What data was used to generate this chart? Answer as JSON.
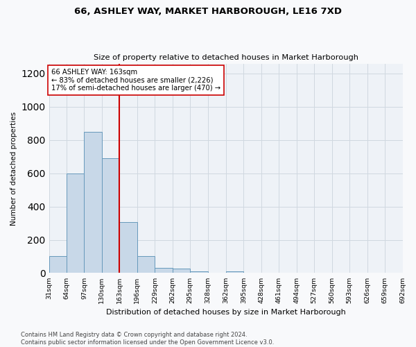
{
  "title": "66, ASHLEY WAY, MARKET HARBOROUGH, LE16 7XD",
  "subtitle": "Size of property relative to detached houses in Market Harborough",
  "xlabel": "Distribution of detached houses by size in Market Harborough",
  "ylabel": "Number of detached properties",
  "bin_edges": [
    31,
    64,
    97,
    130,
    163,
    196,
    229,
    262,
    295,
    328,
    362,
    395,
    428,
    461,
    494,
    527,
    560,
    593,
    626,
    659,
    692
  ],
  "bar_heights": [
    100,
    600,
    850,
    690,
    305,
    100,
    30,
    25,
    10,
    0,
    10,
    0,
    0,
    0,
    0,
    0,
    0,
    0,
    0,
    0
  ],
  "bar_color": "#c8d8e8",
  "bar_edge_color": "#6699bb",
  "vline_x": 163,
  "vline_color": "#cc0000",
  "annotation_text": "66 ASHLEY WAY: 163sqm\n← 83% of detached houses are smaller (2,226)\n17% of semi-detached houses are larger (470) →",
  "annotation_box_color": "#ffffff",
  "annotation_box_edge": "#cc0000",
  "ylim": [
    0,
    1260
  ],
  "yticks": [
    0,
    200,
    400,
    600,
    800,
    1000,
    1200
  ],
  "tick_labels": [
    "31sqm",
    "64sqm",
    "97sqm",
    "130sqm",
    "163sqm",
    "196sqm",
    "229sqm",
    "262sqm",
    "295sqm",
    "328sqm",
    "362sqm",
    "395sqm",
    "428sqm",
    "461sqm",
    "494sqm",
    "527sqm",
    "560sqm",
    "593sqm",
    "626sqm",
    "659sqm",
    "692sqm"
  ],
  "footnote": "Contains HM Land Registry data © Crown copyright and database right 2024.\nContains public sector information licensed under the Open Government Licence v3.0.",
  "bg_color": "#eef2f7",
  "fig_color": "#f8f9fb",
  "grid_color": "#d0d8e0"
}
